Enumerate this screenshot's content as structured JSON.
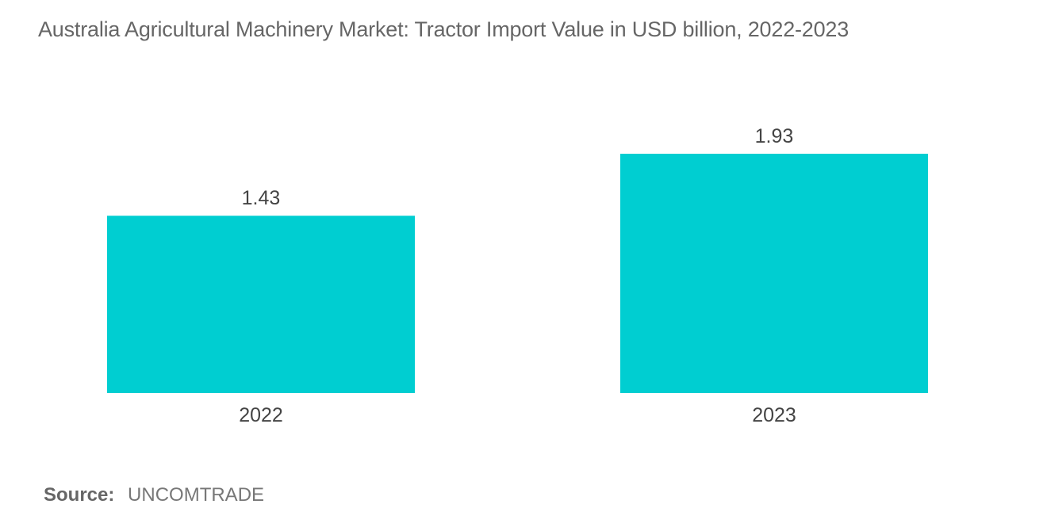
{
  "chart_data": {
    "type": "bar",
    "title": "Australia Agricultural Machinery Market: Tractor Import Value in USD billion, 2022-2023",
    "categories": [
      "2022",
      "2023"
    ],
    "values": [
      1.43,
      1.93
    ],
    "value_labels": [
      "1.43",
      "1.93"
    ],
    "xlabel": "",
    "ylabel": "",
    "ylim": [
      0,
      1.93
    ],
    "grid": false,
    "legend": "none",
    "bar_color": "#00CED1"
  },
  "source": {
    "label": "Source:",
    "value": "UNCOMTRADE"
  }
}
